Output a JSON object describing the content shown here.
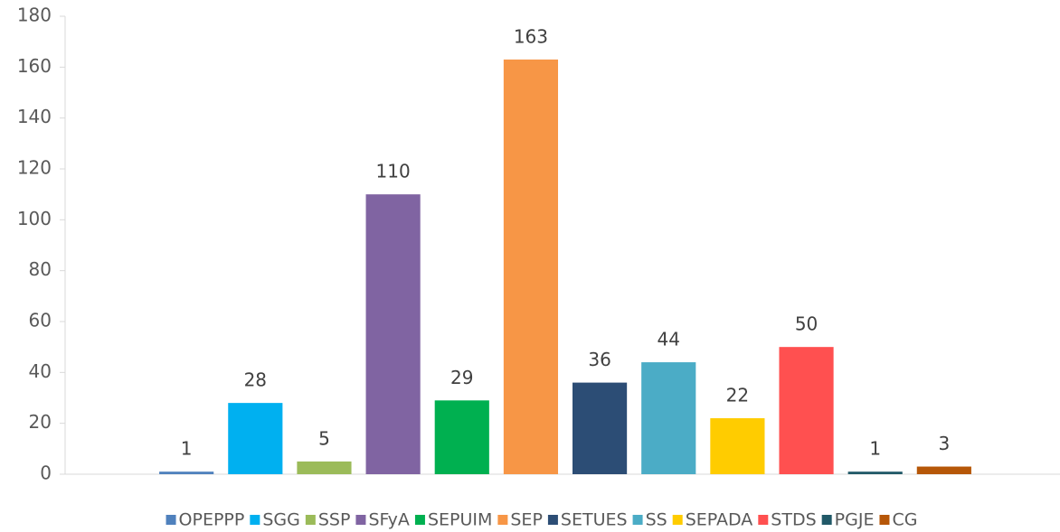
{
  "chart_data": {
    "type": "bar",
    "categories": [
      null
    ],
    "series": [
      {
        "name": "OPEPPP",
        "color": "#4f81bd",
        "values": [
          1
        ]
      },
      {
        "name": "SGG",
        "color": "#00b0f0",
        "values": [
          28
        ]
      },
      {
        "name": "SSP",
        "color": "#9bbb59",
        "values": [
          5
        ]
      },
      {
        "name": "SFyA",
        "color": "#8064a2",
        "values": [
          110
        ]
      },
      {
        "name": "SEPUIM",
        "color": "#00b050",
        "values": [
          29
        ]
      },
      {
        "name": "SEP",
        "color": "#f79646",
        "values": [
          163
        ]
      },
      {
        "name": "SETUES",
        "color": "#2c4d75",
        "values": [
          36
        ]
      },
      {
        "name": "SS",
        "color": "#4bacc6",
        "values": [
          44
        ]
      },
      {
        "name": "SEPADA",
        "color": "#ffcc00",
        "values": [
          22
        ]
      },
      {
        "name": "STDS",
        "color": "#ff5050",
        "values": [
          50
        ]
      },
      {
        "name": "PGJE",
        "color": "#215968",
        "values": [
          1
        ]
      },
      {
        "name": "CG",
        "color": "#b65708",
        "values": [
          3
        ]
      }
    ],
    "ylim": [
      0,
      180
    ],
    "yticks": [
      0,
      20,
      40,
      60,
      80,
      100,
      120,
      140,
      160,
      180
    ],
    "grid": false,
    "legend": "bottom"
  }
}
